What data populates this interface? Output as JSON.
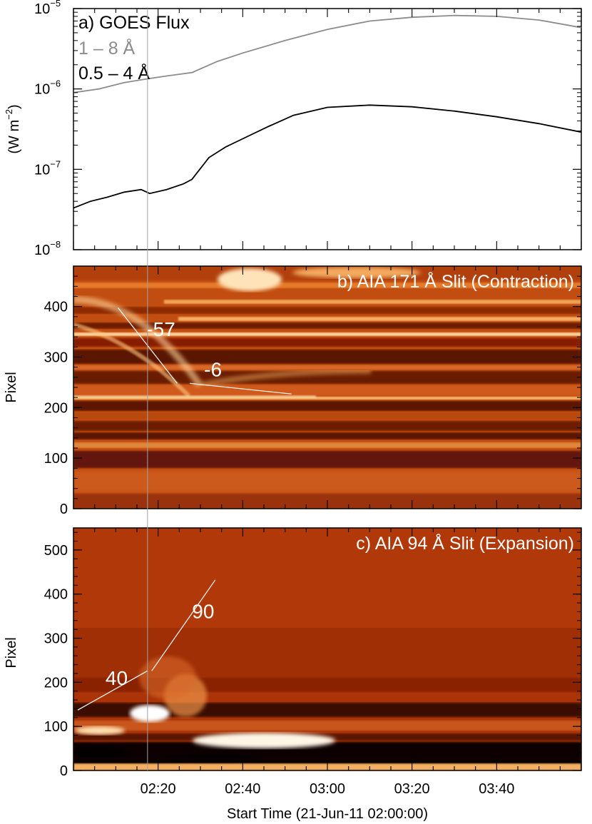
{
  "chart_data": [
    {
      "type": "line",
      "panel_label": "a) GOES Flux",
      "ylabel": "(W m",
      "ylabel_exponent": "−2",
      "ylabel_close": ")",
      "yscale": "log",
      "ylim": [
        1e-08,
        1e-05
      ],
      "y_ticks": [
        {
          "base": "10",
          "exp": "−5",
          "value": 1e-05
        },
        {
          "base": "10",
          "exp": "−6",
          "value": 1e-06
        },
        {
          "base": "10",
          "exp": "−7",
          "value": 1e-07
        },
        {
          "base": "10",
          "exp": "−8",
          "value": 1e-08
        }
      ],
      "xlim_minutes": [
        0,
        120
      ],
      "series": [
        {
          "name": "1 – 8 Å",
          "color": "#8c8c8c",
          "x_minutes": [
            0,
            6,
            12,
            18,
            22,
            28,
            34,
            40,
            50,
            60,
            70,
            80,
            90,
            100,
            110,
            120
          ],
          "values": [
            9e-07,
            1e-06,
            1.2e-06,
            1.35e-06,
            1.45e-06,
            1.6e-06,
            2.2e-06,
            2.8e-06,
            4e-06,
            5.5e-06,
            7e-06,
            7.8e-06,
            8.2e-06,
            8e-06,
            7.2e-06,
            5.8e-06
          ]
        },
        {
          "name": "0.5 – 4 Å",
          "color": "#000000",
          "x_minutes": [
            0,
            4,
            8,
            12,
            16,
            18,
            22,
            26,
            28,
            32,
            36,
            40,
            46,
            52,
            60,
            70,
            80,
            90,
            100,
            110,
            120
          ],
          "values": [
            3.3e-08,
            4e-08,
            4.5e-08,
            5.2e-08,
            5.6e-08,
            5e-08,
            5.6e-08,
            6.6e-08,
            7.5e-08,
            1.4e-07,
            1.9e-07,
            2.4e-07,
            3.4e-07,
            4.7e-07,
            5.9e-07,
            6.3e-07,
            6e-07,
            5.3e-07,
            4.5e-07,
            3.7e-07,
            2.9e-07
          ]
        }
      ]
    },
    {
      "type": "heatmap",
      "panel_label": "b) AIA 171 Å Slit (Contraction)",
      "ylabel": "Pixel",
      "ylim": [
        0,
        480
      ],
      "y_ticks": [
        0,
        100,
        200,
        300,
        400
      ],
      "xlim_minutes": [
        0,
        120
      ],
      "colormap": "red-orange-white",
      "features": [
        {
          "label": "-57",
          "x_minutes": [
            10.5,
            24.5
          ],
          "pixel": [
            398,
            248
          ]
        },
        {
          "label": "-6",
          "x_minutes": [
            27.5,
            51.5
          ],
          "pixel": [
            248,
            227
          ]
        }
      ]
    },
    {
      "type": "heatmap",
      "panel_label": "c) AIA 94 Å Slit (Expansion)",
      "ylabel": "Pixel",
      "xlabel": "Start Time (21-Jun-11 02:00:00)",
      "ylim": [
        0,
        550
      ],
      "y_ticks": [
        0,
        100,
        200,
        300,
        400,
        500
      ],
      "xlim_minutes": [
        0,
        120
      ],
      "x_ticks": [
        "02:20",
        "02:40",
        "03:00",
        "03:20",
        "03:40"
      ],
      "x_tick_minutes": [
        20,
        40,
        60,
        80,
        100
      ],
      "colormap": "red-orange-white",
      "features": [
        {
          "label": "40",
          "x_minutes": [
            1,
            17.5
          ],
          "pixel": [
            137,
            226
          ]
        },
        {
          "label": "90",
          "x_minutes": [
            18.5,
            33.5
          ],
          "pixel": [
            226,
            432
          ]
        }
      ]
    }
  ],
  "vertical_marker_minutes": 17.5
}
